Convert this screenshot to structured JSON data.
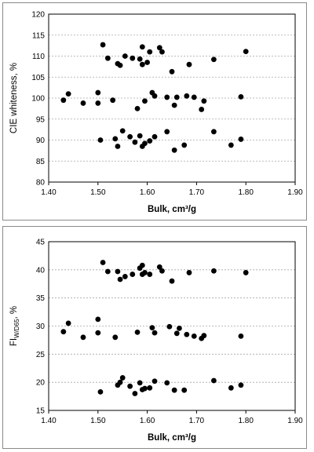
{
  "chart_data": [
    {
      "type": "scatter",
      "title": "",
      "xlabel": "Bulk, cm³/g",
      "ylabel": "CIE whiteness, %",
      "xlim": [
        1.4,
        1.9
      ],
      "ylim": [
        80,
        120
      ],
      "xticks": [
        "1.40",
        "1.50",
        "1.60",
        "1.70",
        "1.80",
        "1.90"
      ],
      "yticks": [
        "80",
        "85",
        "90",
        "95",
        "100",
        "105",
        "110",
        "115",
        "120"
      ],
      "grid": "horizontal dashed",
      "marker_color": "#000000",
      "points": [
        [
          1.43,
          99.5
        ],
        [
          1.44,
          101.0
        ],
        [
          1.47,
          98.8
        ],
        [
          1.5,
          98.8
        ],
        [
          1.5,
          101.3
        ],
        [
          1.51,
          112.7
        ],
        [
          1.52,
          109.5
        ],
        [
          1.53,
          99.5
        ],
        [
          1.54,
          108.2
        ],
        [
          1.545,
          107.8
        ],
        [
          1.555,
          110.0
        ],
        [
          1.57,
          109.5
        ],
        [
          1.58,
          97.5
        ],
        [
          1.585,
          109.3
        ],
        [
          1.59,
          112.2
        ],
        [
          1.59,
          108.0
        ],
        [
          1.595,
          99.3
        ],
        [
          1.6,
          108.5
        ],
        [
          1.605,
          111.0
        ],
        [
          1.61,
          101.3
        ],
        [
          1.615,
          100.5
        ],
        [
          1.625,
          112.0
        ],
        [
          1.63,
          111.0
        ],
        [
          1.64,
          100.2
        ],
        [
          1.65,
          106.3
        ],
        [
          1.655,
          98.3
        ],
        [
          1.66,
          100.2
        ],
        [
          1.68,
          100.5
        ],
        [
          1.685,
          108.0
        ],
        [
          1.695,
          100.2
        ],
        [
          1.71,
          97.3
        ],
        [
          1.715,
          99.3
        ],
        [
          1.735,
          109.2
        ],
        [
          1.79,
          100.3
        ],
        [
          1.8,
          111.1
        ],
        [
          1.505,
          90.0
        ],
        [
          1.535,
          90.3
        ],
        [
          1.54,
          88.5
        ],
        [
          1.55,
          92.2
        ],
        [
          1.565,
          90.8
        ],
        [
          1.575,
          89.5
        ],
        [
          1.585,
          91.0
        ],
        [
          1.59,
          88.5
        ],
        [
          1.595,
          89.2
        ],
        [
          1.605,
          89.8
        ],
        [
          1.615,
          90.8
        ],
        [
          1.64,
          92.0
        ],
        [
          1.655,
          87.6
        ],
        [
          1.675,
          88.8
        ],
        [
          1.735,
          92.0
        ],
        [
          1.77,
          88.8
        ],
        [
          1.79,
          90.2
        ]
      ]
    },
    {
      "type": "scatter",
      "title": "",
      "xlabel": "Bulk, cm³/g",
      "ylabel_main": "FI",
      "ylabel_sub": "W/D65",
      "ylabel_suffix": ", %",
      "xlim": [
        1.4,
        1.9
      ],
      "ylim": [
        15,
        45
      ],
      "xticks": [
        "1.40",
        "1.50",
        "1.60",
        "1.70",
        "1.80",
        "1.90"
      ],
      "yticks": [
        "15",
        "20",
        "25",
        "30",
        "35",
        "40",
        "45"
      ],
      "grid": "horizontal dashed",
      "marker_color": "#000000",
      "points": [
        [
          1.43,
          29.0
        ],
        [
          1.44,
          30.5
        ],
        [
          1.47,
          28.0
        ],
        [
          1.5,
          28.8
        ],
        [
          1.5,
          31.2
        ],
        [
          1.51,
          41.3
        ],
        [
          1.52,
          39.7
        ],
        [
          1.535,
          28.0
        ],
        [
          1.54,
          39.7
        ],
        [
          1.545,
          38.3
        ],
        [
          1.555,
          38.8
        ],
        [
          1.57,
          39.2
        ],
        [
          1.58,
          28.9
        ],
        [
          1.585,
          40.3
        ],
        [
          1.59,
          40.8
        ],
        [
          1.59,
          39.2
        ],
        [
          1.595,
          39.5
        ],
        [
          1.605,
          39.2
        ],
        [
          1.61,
          29.7
        ],
        [
          1.615,
          28.8
        ],
        [
          1.625,
          40.5
        ],
        [
          1.63,
          39.8
        ],
        [
          1.645,
          29.9
        ],
        [
          1.65,
          38.0
        ],
        [
          1.66,
          28.7
        ],
        [
          1.665,
          29.6
        ],
        [
          1.68,
          28.5
        ],
        [
          1.685,
          39.5
        ],
        [
          1.695,
          28.2
        ],
        [
          1.71,
          27.8
        ],
        [
          1.715,
          28.3
        ],
        [
          1.735,
          39.8
        ],
        [
          1.79,
          28.2
        ],
        [
          1.8,
          39.5
        ],
        [
          1.505,
          18.3
        ],
        [
          1.54,
          19.5
        ],
        [
          1.545,
          20.0
        ],
        [
          1.55,
          20.8
        ],
        [
          1.565,
          19.3
        ],
        [
          1.575,
          18.0
        ],
        [
          1.585,
          19.9
        ],
        [
          1.59,
          18.7
        ],
        [
          1.595,
          18.9
        ],
        [
          1.605,
          19.0
        ],
        [
          1.615,
          20.2
        ],
        [
          1.64,
          19.9
        ],
        [
          1.655,
          18.6
        ],
        [
          1.675,
          18.6
        ],
        [
          1.735,
          20.3
        ],
        [
          1.77,
          19.0
        ],
        [
          1.79,
          19.5
        ]
      ]
    }
  ]
}
